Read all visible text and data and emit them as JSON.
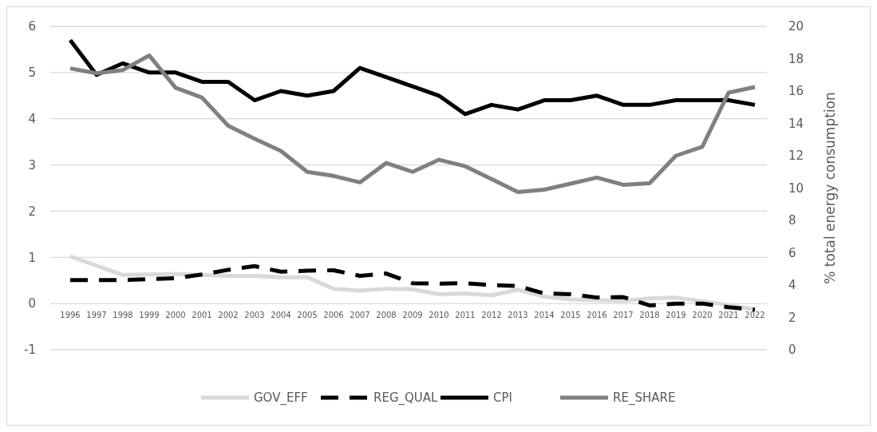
{
  "chart_data": {
    "type": "line",
    "categories": [
      "1996",
      "1997",
      "1998",
      "1999",
      "2000",
      "2001",
      "2002",
      "2003",
      "2004",
      "2005",
      "2006",
      "2007",
      "2008",
      "2009",
      "2010",
      "2011",
      "2012",
      "2013",
      "2014",
      "2015",
      "2016",
      "2017",
      "2018",
      "2019",
      "2020",
      "2021",
      "2022"
    ],
    "ylim": [
      -1,
      6
    ],
    "yticks": [
      -1,
      0,
      1,
      2,
      3,
      4,
      5,
      6
    ],
    "y2lim": [
      0,
      20
    ],
    "y2ticks": [
      0,
      2,
      4,
      6,
      8,
      10,
      12,
      14,
      16,
      18,
      20
    ],
    "y2label": "% total energy consumption",
    "grid": "y",
    "legend": "bottom",
    "series": [
      {
        "name": "GOV_EFF",
        "color": "#d9d9d9",
        "values": [
          1.02,
          0.82,
          0.62,
          0.63,
          0.64,
          0.62,
          0.6,
          0.6,
          0.57,
          0.57,
          0.32,
          0.28,
          0.32,
          0.31,
          0.2,
          0.22,
          0.18,
          0.3,
          0.15,
          0.09,
          0.07,
          0.06,
          0.11,
          0.13,
          0.05,
          -0.03,
          -0.13
        ]
      },
      {
        "name": "REG_QUAL",
        "color": "#000000",
        "line_style": "dashed",
        "values": [
          0.51,
          0.51,
          0.51,
          0.53,
          0.55,
          0.63,
          0.73,
          0.81,
          0.69,
          0.71,
          0.72,
          0.6,
          0.65,
          0.44,
          0.43,
          0.44,
          0.4,
          0.38,
          0.22,
          0.2,
          0.13,
          0.14,
          -0.04,
          0.0,
          0.0,
          -0.08,
          -0.13
        ]
      },
      {
        "name": "CPI",
        "color": "#000000",
        "values": [
          5.7,
          4.95,
          5.2,
          5.0,
          5.0,
          4.8,
          4.8,
          4.4,
          4.6,
          4.5,
          4.6,
          5.1,
          4.9,
          4.7,
          4.5,
          4.1,
          4.3,
          4.2,
          4.4,
          4.4,
          4.5,
          4.3,
          4.3,
          4.4,
          4.4,
          4.4,
          4.3
        ]
      },
      {
        "name": "RE_SHARE",
        "color": "#808080",
        "axis": "y2",
        "values": [
          17.4,
          17.1,
          17.3,
          18.2,
          16.2,
          15.6,
          13.85,
          13.05,
          12.3,
          11.0,
          10.75,
          10.35,
          11.55,
          11.0,
          11.75,
          11.35,
          10.55,
          9.75,
          9.9,
          10.27,
          10.65,
          10.2,
          10.3,
          12.0,
          12.55,
          15.9,
          16.25
        ]
      }
    ]
  }
}
